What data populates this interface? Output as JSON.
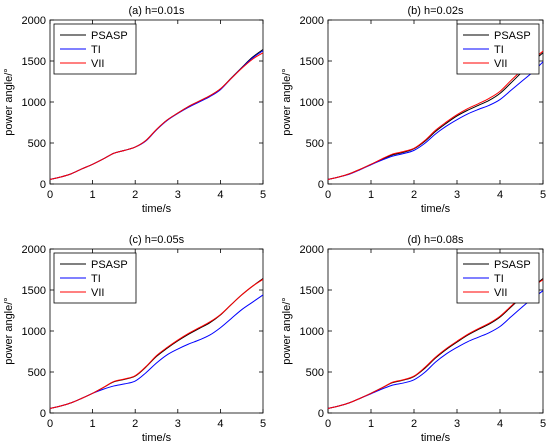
{
  "chart_data": [
    {
      "type": "line",
      "title": "(a) h=0.01s",
      "xlabel": "time/s",
      "ylabel": "power angle/°",
      "xlim": [
        0,
        5
      ],
      "ylim": [
        0,
        2000
      ],
      "xticks": [
        "0",
        "1",
        "2",
        "3",
        "4",
        "5"
      ],
      "yticks": [
        "0",
        "500",
        "1000",
        "1500",
        "2000"
      ],
      "legend_placement": "top-left",
      "series": [
        {
          "name": "PSASP",
          "color": "#000000",
          "x": [
            0,
            0.25,
            0.5,
            0.75,
            1,
            1.25,
            1.5,
            1.75,
            2,
            2.25,
            2.5,
            2.75,
            3,
            3.25,
            3.5,
            3.75,
            4,
            4.25,
            4.5,
            4.75,
            5
          ],
          "y": [
            55,
            85,
            125,
            185,
            240,
            305,
            375,
            410,
            450,
            530,
            665,
            780,
            865,
            945,
            1010,
            1075,
            1160,
            1290,
            1420,
            1545,
            1640
          ]
        },
        {
          "name": "TI",
          "color": "#0000ff",
          "x": [
            0,
            0.25,
            0.5,
            0.75,
            1,
            1.25,
            1.5,
            1.75,
            2,
            2.25,
            2.5,
            2.75,
            3,
            3.25,
            3.5,
            3.75,
            4,
            4.25,
            4.5,
            4.75,
            5
          ],
          "y": [
            55,
            85,
            125,
            185,
            240,
            305,
            375,
            410,
            450,
            525,
            660,
            775,
            860,
            935,
            1000,
            1065,
            1150,
            1285,
            1415,
            1535,
            1625
          ]
        },
        {
          "name": "VII",
          "color": "#ff0000",
          "x": [
            0,
            0.25,
            0.5,
            0.75,
            1,
            1.25,
            1.5,
            1.75,
            2,
            2.25,
            2.5,
            2.75,
            3,
            3.25,
            3.5,
            3.75,
            4,
            4.25,
            4.5,
            4.75,
            5
          ],
          "y": [
            55,
            85,
            125,
            185,
            240,
            305,
            375,
            410,
            450,
            530,
            665,
            780,
            865,
            945,
            1010,
            1075,
            1160,
            1285,
            1410,
            1520,
            1600
          ]
        }
      ]
    },
    {
      "type": "line",
      "title": "(b) h=0.02s",
      "xlabel": "time/s",
      "ylabel": "power angle/°",
      "xlim": [
        0,
        5
      ],
      "ylim": [
        0,
        2000
      ],
      "xticks": [
        "0",
        "1",
        "2",
        "3",
        "4",
        "5"
      ],
      "yticks": [
        "0",
        "500",
        "1000",
        "1500",
        "2000"
      ],
      "legend_placement": "top-right",
      "series": [
        {
          "name": "PSASP",
          "color": "#000000",
          "x": [
            0,
            0.25,
            0.5,
            0.75,
            1,
            1.25,
            1.5,
            1.75,
            2,
            2.25,
            2.5,
            2.75,
            3,
            3.25,
            3.5,
            3.75,
            4,
            4.25,
            4.5,
            4.75,
            5
          ],
          "y": [
            55,
            85,
            125,
            180,
            240,
            300,
            355,
            385,
            430,
            520,
            640,
            740,
            830,
            900,
            960,
            1020,
            1105,
            1230,
            1360,
            1490,
            1600
          ]
        },
        {
          "name": "TI",
          "color": "#0000ff",
          "x": [
            0,
            0.25,
            0.5,
            0.75,
            1,
            1.25,
            1.5,
            1.75,
            2,
            2.25,
            2.5,
            2.75,
            3,
            3.25,
            3.5,
            3.75,
            4,
            4.25,
            4.5,
            4.75,
            5
          ],
          "y": [
            55,
            85,
            120,
            175,
            235,
            290,
            340,
            370,
            410,
            495,
            610,
            705,
            785,
            855,
            910,
            960,
            1030,
            1140,
            1250,
            1360,
            1490
          ]
        },
        {
          "name": "VII",
          "color": "#ff0000",
          "x": [
            0,
            0.25,
            0.5,
            0.75,
            1,
            1.25,
            1.5,
            1.75,
            2,
            2.25,
            2.5,
            2.75,
            3,
            3.25,
            3.5,
            3.75,
            4,
            4.25,
            4.5,
            4.75,
            5
          ],
          "y": [
            55,
            85,
            125,
            180,
            240,
            305,
            365,
            395,
            435,
            530,
            655,
            755,
            845,
            920,
            980,
            1045,
            1130,
            1260,
            1385,
            1510,
            1620
          ]
        }
      ]
    },
    {
      "type": "line",
      "title": "(c) h=0.05s",
      "xlabel": "time/s",
      "ylabel": "power angle/°",
      "xlim": [
        0,
        5
      ],
      "ylim": [
        0,
        2000
      ],
      "xticks": [
        "0",
        "1",
        "2",
        "3",
        "4",
        "5"
      ],
      "yticks": [
        "0",
        "500",
        "1000",
        "1500",
        "2000"
      ],
      "legend_placement": "top-left",
      "series": [
        {
          "name": "PSASP",
          "color": "#000000",
          "x": [
            0,
            0.25,
            0.5,
            0.75,
            1,
            1.25,
            1.5,
            1.75,
            2,
            2.25,
            2.5,
            2.75,
            3,
            3.25,
            3.5,
            3.75,
            4,
            4.25,
            4.5,
            4.75,
            5
          ],
          "y": [
            55,
            85,
            125,
            180,
            240,
            310,
            380,
            410,
            450,
            560,
            690,
            790,
            880,
            960,
            1030,
            1100,
            1195,
            1320,
            1440,
            1545,
            1640
          ]
        },
        {
          "name": "TI",
          "color": "#0000ff",
          "x": [
            0,
            0.25,
            0.5,
            0.75,
            1,
            1.25,
            1.5,
            1.75,
            2,
            2.25,
            2.5,
            2.75,
            3,
            3.25,
            3.5,
            3.75,
            4,
            4.25,
            4.5,
            4.75,
            5
          ],
          "y": [
            55,
            85,
            125,
            180,
            240,
            290,
            330,
            355,
            390,
            490,
            610,
            710,
            780,
            840,
            890,
            950,
            1040,
            1150,
            1260,
            1350,
            1440
          ]
        },
        {
          "name": "VII",
          "color": "#ff0000",
          "x": [
            0,
            0.25,
            0.5,
            0.75,
            1,
            1.25,
            1.5,
            1.75,
            2,
            2.25,
            2.5,
            2.75,
            3,
            3.25,
            3.5,
            3.75,
            4,
            4.25,
            4.5,
            4.75,
            5
          ],
          "y": [
            55,
            85,
            125,
            180,
            240,
            310,
            385,
            415,
            455,
            565,
            700,
            800,
            890,
            970,
            1040,
            1110,
            1200,
            1320,
            1440,
            1545,
            1630
          ]
        }
      ]
    },
    {
      "type": "line",
      "title": "(d) h=0.08s",
      "xlabel": "time/s",
      "ylabel": "power angle/°",
      "xlim": [
        0,
        5
      ],
      "ylim": [
        0,
        2000
      ],
      "xticks": [
        "0",
        "1",
        "2",
        "3",
        "4",
        "5"
      ],
      "yticks": [
        "0",
        "500",
        "1000",
        "1500",
        "2000"
      ],
      "legend_placement": "top-right",
      "series": [
        {
          "name": "PSASP",
          "color": "#000000",
          "x": [
            0,
            0.25,
            0.5,
            0.75,
            1,
            1.25,
            1.5,
            1.75,
            2,
            2.25,
            2.5,
            2.75,
            3,
            3.25,
            3.5,
            3.75,
            4,
            4.25,
            4.5,
            4.75,
            5
          ],
          "y": [
            55,
            85,
            125,
            180,
            240,
            305,
            370,
            400,
            445,
            545,
            670,
            775,
            865,
            950,
            1020,
            1085,
            1170,
            1290,
            1410,
            1530,
            1640
          ]
        },
        {
          "name": "TI",
          "color": "#0000ff",
          "x": [
            0,
            0.25,
            0.5,
            0.75,
            1,
            1.25,
            1.5,
            1.75,
            2,
            2.25,
            2.5,
            2.75,
            3,
            3.25,
            3.5,
            3.75,
            4,
            4.25,
            4.5,
            4.75,
            5
          ],
          "y": [
            55,
            85,
            125,
            180,
            235,
            290,
            340,
            365,
            405,
            495,
            620,
            720,
            800,
            870,
            925,
            980,
            1055,
            1170,
            1285,
            1395,
            1490
          ]
        },
        {
          "name": "VII",
          "color": "#ff0000",
          "x": [
            0,
            0.25,
            0.5,
            0.75,
            1,
            1.25,
            1.5,
            1.75,
            2,
            2.25,
            2.5,
            2.75,
            3,
            3.25,
            3.5,
            3.75,
            4,
            4.25,
            4.5,
            4.75,
            5
          ],
          "y": [
            55,
            85,
            125,
            180,
            240,
            305,
            375,
            405,
            450,
            555,
            680,
            785,
            875,
            960,
            1030,
            1095,
            1180,
            1300,
            1420,
            1535,
            1625
          ]
        }
      ]
    }
  ]
}
